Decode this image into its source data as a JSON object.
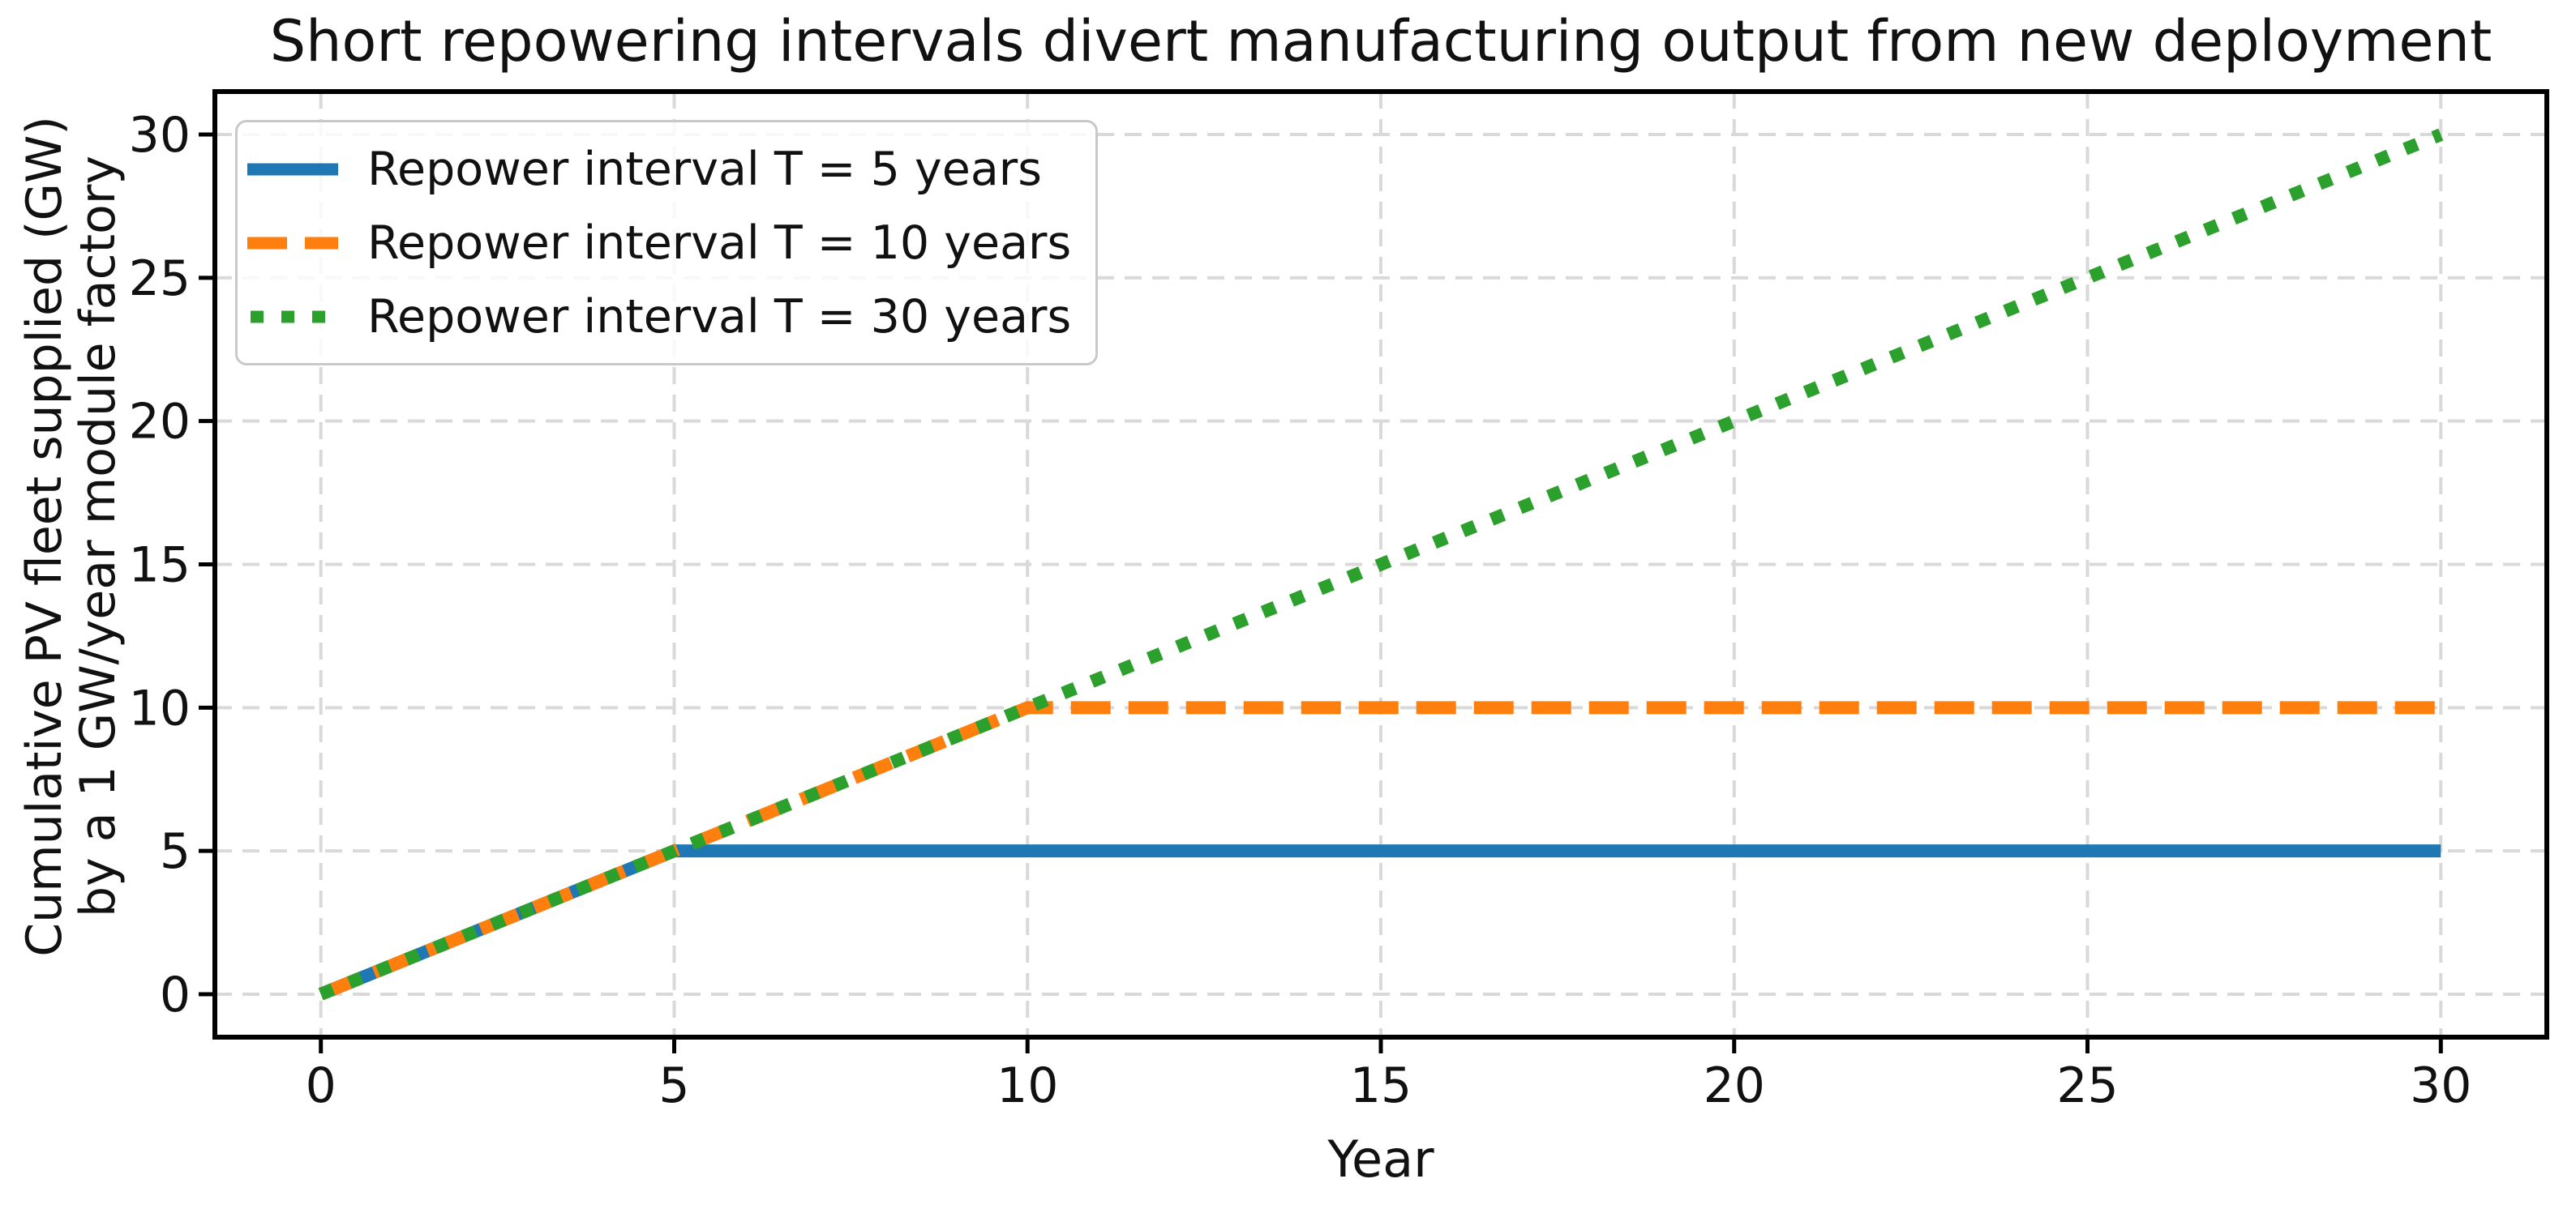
{
  "chart_data": {
    "type": "line",
    "title": "Short repowering intervals divert manufacturing output from new deployment",
    "xlabel": "Year",
    "ylabel": "Cumulative PV fleet supplied (GW)\nby a 1 GW/year module factory",
    "ylabel_lines": [
      "Cumulative PV fleet supplied (GW)",
      "by a 1 GW/year module factory"
    ],
    "xlim": [
      -1.5,
      31.5
    ],
    "ylim": [
      -1.5,
      31.5
    ],
    "xticks": [
      0,
      5,
      10,
      15,
      20,
      25,
      30
    ],
    "yticks": [
      0,
      5,
      10,
      15,
      20,
      25,
      30
    ],
    "grid": true,
    "grid_style": "dashed",
    "legend_position": "upper left",
    "series": [
      {
        "name": "Repower interval T = 5 years",
        "color": "#1f77b4",
        "linestyle": "solid",
        "x": [
          0,
          5,
          30
        ],
        "y": [
          0,
          5,
          5
        ]
      },
      {
        "name": "Repower interval T = 10 years",
        "color": "#ff7f0e",
        "linestyle": "dashed",
        "x": [
          0,
          10,
          30
        ],
        "y": [
          0,
          10,
          10
        ]
      },
      {
        "name": "Repower interval T = 30 years",
        "color": "#2ca02c",
        "linestyle": "dotted",
        "x": [
          0,
          30
        ],
        "y": [
          0,
          30
        ]
      }
    ]
  },
  "colors": {
    "axis": "#000000",
    "grid": "#d9d9d9",
    "text": "#111111",
    "background": "#ffffff",
    "legend_border": "#c9c9c9"
  }
}
